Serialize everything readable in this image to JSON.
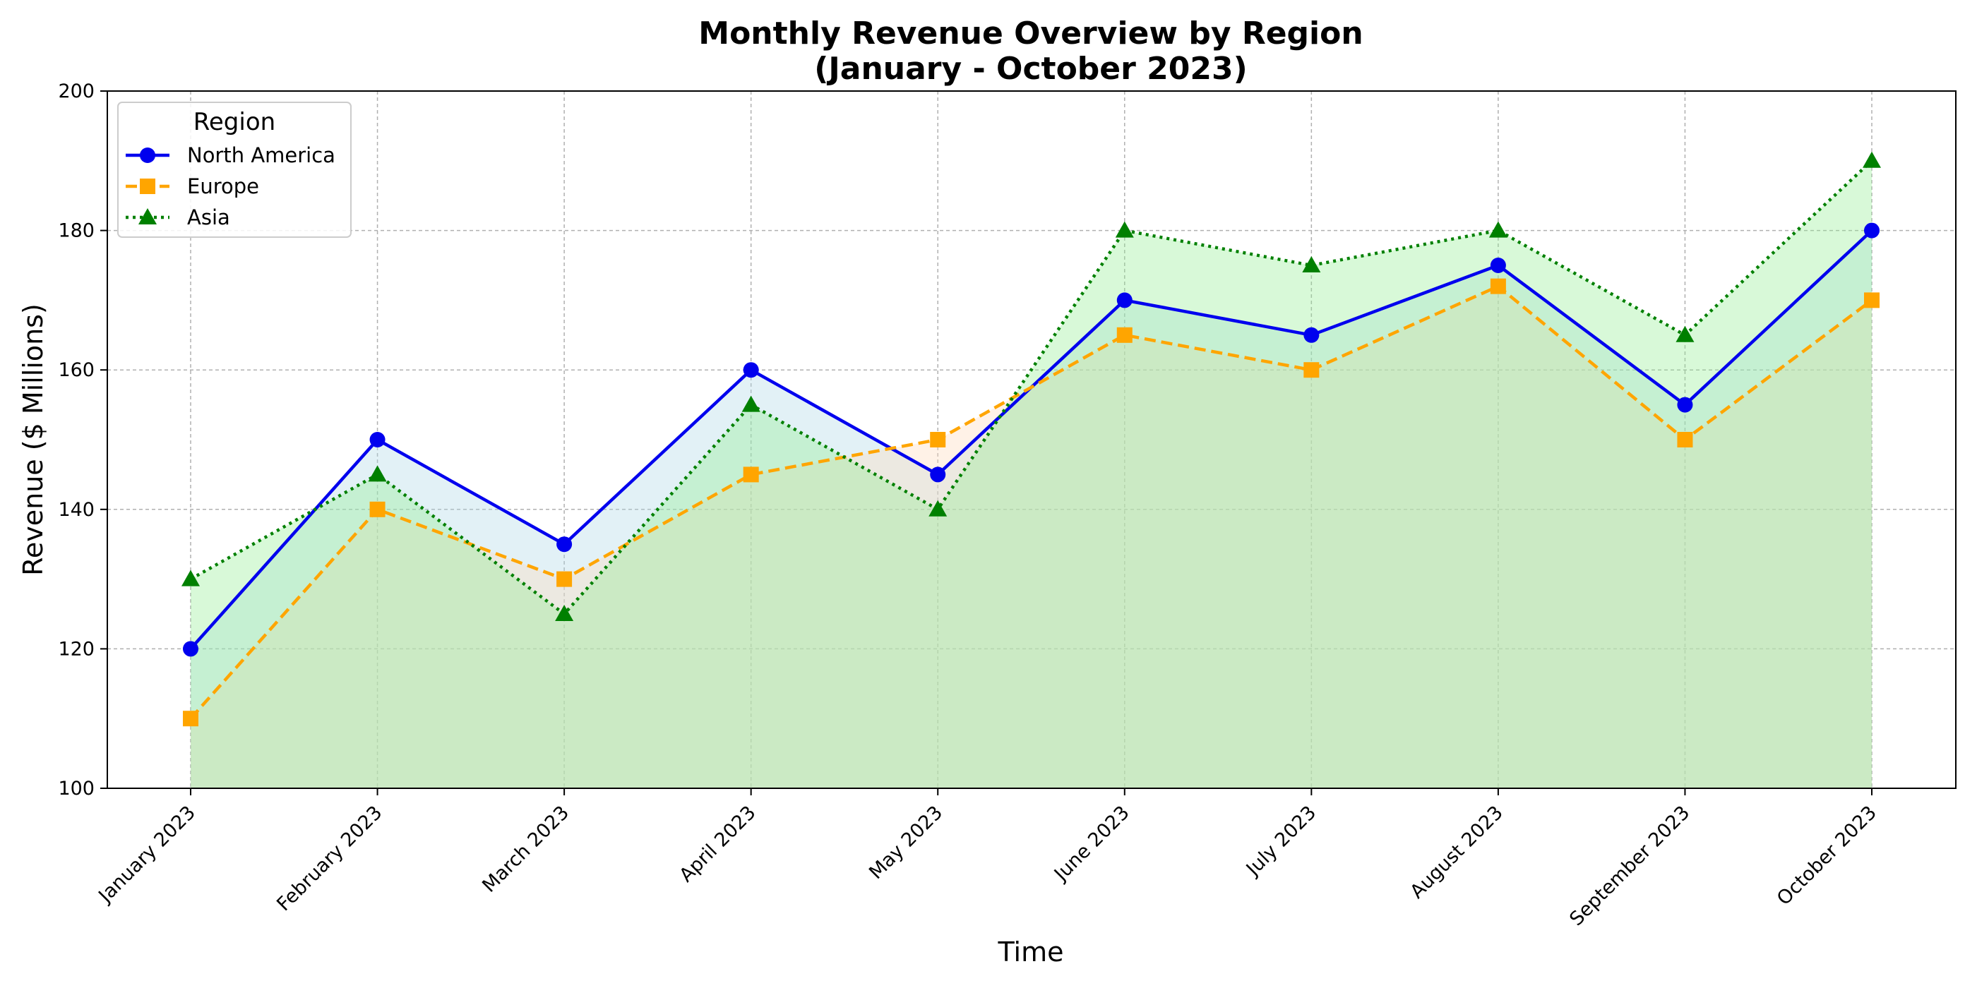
{
  "chart_data": {
    "type": "line",
    "title_line1": "Monthly Revenue Overview by Region",
    "title_line2": "(January - October 2023)",
    "xlabel": "Time",
    "ylabel": "Revenue ($ Millions)",
    "ylim": [
      100,
      200
    ],
    "yticks": [
      100,
      120,
      140,
      160,
      180,
      200
    ],
    "categories": [
      "January 2023",
      "February 2023",
      "March 2023",
      "April 2023",
      "May 2023",
      "June 2023",
      "July 2023",
      "August 2023",
      "September 2023",
      "October 2023"
    ],
    "grid": true,
    "legend": {
      "title": "Region",
      "placement": "top-left"
    },
    "series": [
      {
        "name": "North America",
        "values": [
          120,
          150,
          135,
          160,
          145,
          170,
          165,
          175,
          155,
          180
        ],
        "color": "#0000ee",
        "fill": "#add8e6",
        "marker": "circle",
        "linestyle": "solid"
      },
      {
        "name": "Europe",
        "values": [
          110,
          140,
          130,
          145,
          150,
          165,
          160,
          172,
          150,
          170
        ],
        "color": "#ffa500",
        "fill": "#ffdab9",
        "marker": "square",
        "linestyle": "dashed"
      },
      {
        "name": "Asia",
        "values": [
          130,
          145,
          125,
          155,
          140,
          180,
          175,
          180,
          165,
          190
        ],
        "color": "#008000",
        "fill": "#90ee90",
        "marker": "triangle",
        "linestyle": "dotted"
      }
    ]
  }
}
